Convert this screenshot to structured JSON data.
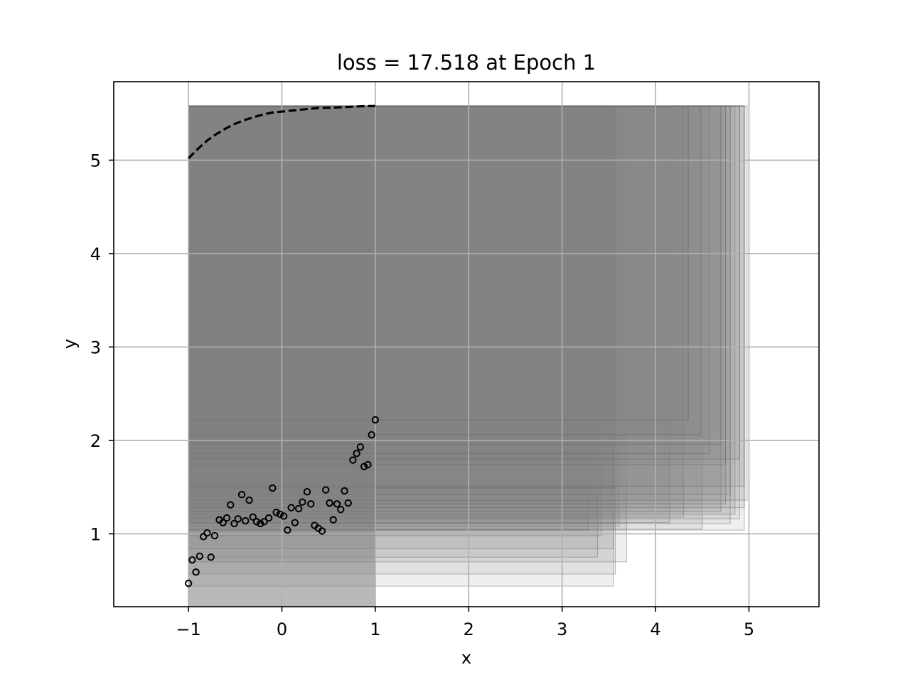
{
  "chart_data": {
    "type": "scatter",
    "title": "loss = 17.518 at Epoch 1",
    "xlabel": "x",
    "ylabel": "y",
    "xlim": [
      -1.8,
      5.75
    ],
    "ylim": [
      0.22,
      5.84
    ],
    "grid": true,
    "x_ticks": [
      {
        "value": -1,
        "label": "−1"
      },
      {
        "value": 0,
        "label": "0"
      },
      {
        "value": 1,
        "label": "1"
      },
      {
        "value": 2,
        "label": "2"
      },
      {
        "value": 3,
        "label": "3"
      },
      {
        "value": 4,
        "label": "4"
      },
      {
        "value": 5,
        "label": "5"
      }
    ],
    "y_ticks": [
      {
        "value": 1,
        "label": "1"
      },
      {
        "value": 2,
        "label": "2"
      },
      {
        "value": 3,
        "label": "3"
      },
      {
        "value": 4,
        "label": "4"
      },
      {
        "value": 5,
        "label": "5"
      }
    ],
    "points": [
      [
        -1.0,
        0.47
      ],
      [
        -0.96,
        0.72
      ],
      [
        -0.92,
        0.59
      ],
      [
        -0.88,
        0.76
      ],
      [
        -0.84,
        0.97
      ],
      [
        -0.8,
        1.01
      ],
      [
        -0.76,
        0.75
      ],
      [
        -0.72,
        0.98
      ],
      [
        -0.67,
        1.15
      ],
      [
        -0.63,
        1.12
      ],
      [
        -0.59,
        1.17
      ],
      [
        -0.55,
        1.31
      ],
      [
        -0.51,
        1.11
      ],
      [
        -0.47,
        1.16
      ],
      [
        -0.43,
        1.42
      ],
      [
        -0.39,
        1.14
      ],
      [
        -0.35,
        1.36
      ],
      [
        -0.31,
        1.18
      ],
      [
        -0.27,
        1.13
      ],
      [
        -0.23,
        1.11
      ],
      [
        -0.19,
        1.13
      ],
      [
        -0.14,
        1.17
      ],
      [
        -0.1,
        1.49
      ],
      [
        -0.06,
        1.23
      ],
      [
        -0.02,
        1.21
      ],
      [
        0.02,
        1.19
      ],
      [
        0.06,
        1.04
      ],
      [
        0.1,
        1.28
      ],
      [
        0.14,
        1.12
      ],
      [
        0.18,
        1.27
      ],
      [
        0.22,
        1.34
      ],
      [
        0.27,
        1.45
      ],
      [
        0.31,
        1.32
      ],
      [
        0.35,
        1.09
      ],
      [
        0.39,
        1.06
      ],
      [
        0.43,
        1.03
      ],
      [
        0.47,
        1.47
      ],
      [
        0.51,
        1.33
      ],
      [
        0.55,
        1.15
      ],
      [
        0.59,
        1.32
      ],
      [
        0.63,
        1.26
      ],
      [
        0.67,
        1.46
      ],
      [
        0.71,
        1.33
      ],
      [
        0.76,
        1.79
      ],
      [
        0.8,
        1.86
      ],
      [
        0.84,
        1.93
      ],
      [
        0.88,
        1.72
      ],
      [
        0.92,
        1.74
      ],
      [
        0.96,
        2.06
      ],
      [
        1.0,
        2.22
      ]
    ],
    "prediction_curve": {
      "style": "dashed",
      "color": "#000000",
      "x": [
        -1.0,
        -0.9,
        -0.8,
        -0.7,
        -0.6,
        -0.5,
        -0.4,
        -0.3,
        -0.2,
        -0.1,
        0.0,
        0.1,
        0.2,
        0.3,
        0.4,
        0.5,
        0.6,
        0.7,
        0.8,
        0.9,
        1.0
      ],
      "y": [
        5.02,
        5.12,
        5.21,
        5.28,
        5.34,
        5.39,
        5.43,
        5.46,
        5.49,
        5.51,
        5.52,
        5.53,
        5.54,
        5.55,
        5.56,
        5.56,
        5.565,
        5.57,
        5.575,
        5.578,
        5.58
      ]
    },
    "shaded_region": {
      "color": "#808080",
      "x_start": -1.0,
      "x_end": 1.0,
      "top_follows": "prediction_curve"
    },
    "boxes": [
      {
        "x0": -1.0,
        "y0": 0.44,
        "x1": 3.55,
        "y1": 5.58
      },
      {
        "x0": -1.0,
        "y0": 0.57,
        "x1": 3.57,
        "y1": 5.58
      },
      {
        "x0": -1.0,
        "y0": 0.7,
        "x1": 3.69,
        "y1": 5.58
      },
      {
        "x0": -1.0,
        "y0": 0.75,
        "x1": 3.38,
        "y1": 5.58
      },
      {
        "x0": -1.0,
        "y0": 0.84,
        "x1": 3.55,
        "y1": 5.58
      },
      {
        "x0": -1.0,
        "y0": 0.98,
        "x1": 3.42,
        "y1": 5.58
      },
      {
        "x0": -1.0,
        "y0": 1.04,
        "x1": 3.28,
        "y1": 5.58
      },
      {
        "x0": -1.0,
        "y0": 1.08,
        "x1": 3.61,
        "y1": 5.58
      },
      {
        "x0": -1.0,
        "y0": 1.04,
        "x1": 4.95,
        "y1": 5.58
      },
      {
        "x0": -1.0,
        "y0": 1.05,
        "x1": 4.5,
        "y1": 5.58
      },
      {
        "x0": -1.0,
        "y0": 1.11,
        "x1": 4.8,
        "y1": 5.58
      },
      {
        "x0": -1.0,
        "y0": 1.12,
        "x1": 4.15,
        "y1": 5.58
      },
      {
        "x0": -1.0,
        "y0": 1.16,
        "x1": 4.9,
        "y1": 5.58
      },
      {
        "x0": -1.0,
        "y0": 1.18,
        "x1": 4.3,
        "y1": 5.58
      },
      {
        "x0": -1.0,
        "y0": 1.21,
        "x1": 4.85,
        "y1": 5.58
      },
      {
        "x0": -1.0,
        "y0": 1.24,
        "x1": 4.7,
        "y1": 5.58
      },
      {
        "x0": -1.0,
        "y0": 1.28,
        "x1": 4.95,
        "y1": 5.58
      },
      {
        "x0": -1.0,
        "y0": 1.32,
        "x1": 4.75,
        "y1": 5.58
      },
      {
        "x0": -1.0,
        "y0": 1.36,
        "x1": 4.98,
        "y1": 5.58
      },
      {
        "x0": -1.0,
        "y0": 1.42,
        "x1": 4.8,
        "y1": 5.58
      },
      {
        "x0": -1.0,
        "y0": 1.49,
        "x1": 3.55,
        "y1": 5.58
      },
      {
        "x0": -1.0,
        "y0": 1.51,
        "x1": 4.95,
        "y1": 5.58
      },
      {
        "x0": -1.0,
        "y0": 1.74,
        "x1": 4.75,
        "y1": 5.58
      },
      {
        "x0": -1.0,
        "y0": 1.8,
        "x1": 4.9,
        "y1": 5.58
      },
      {
        "x0": -1.0,
        "y0": 1.86,
        "x1": 4.58,
        "y1": 5.58
      },
      {
        "x0": -1.0,
        "y0": 1.96,
        "x1": 4.7,
        "y1": 5.58
      },
      {
        "x0": -1.0,
        "y0": 2.06,
        "x1": 4.48,
        "y1": 5.58
      },
      {
        "x0": -1.0,
        "y0": 2.22,
        "x1": 4.35,
        "y1": 5.58
      }
    ]
  }
}
